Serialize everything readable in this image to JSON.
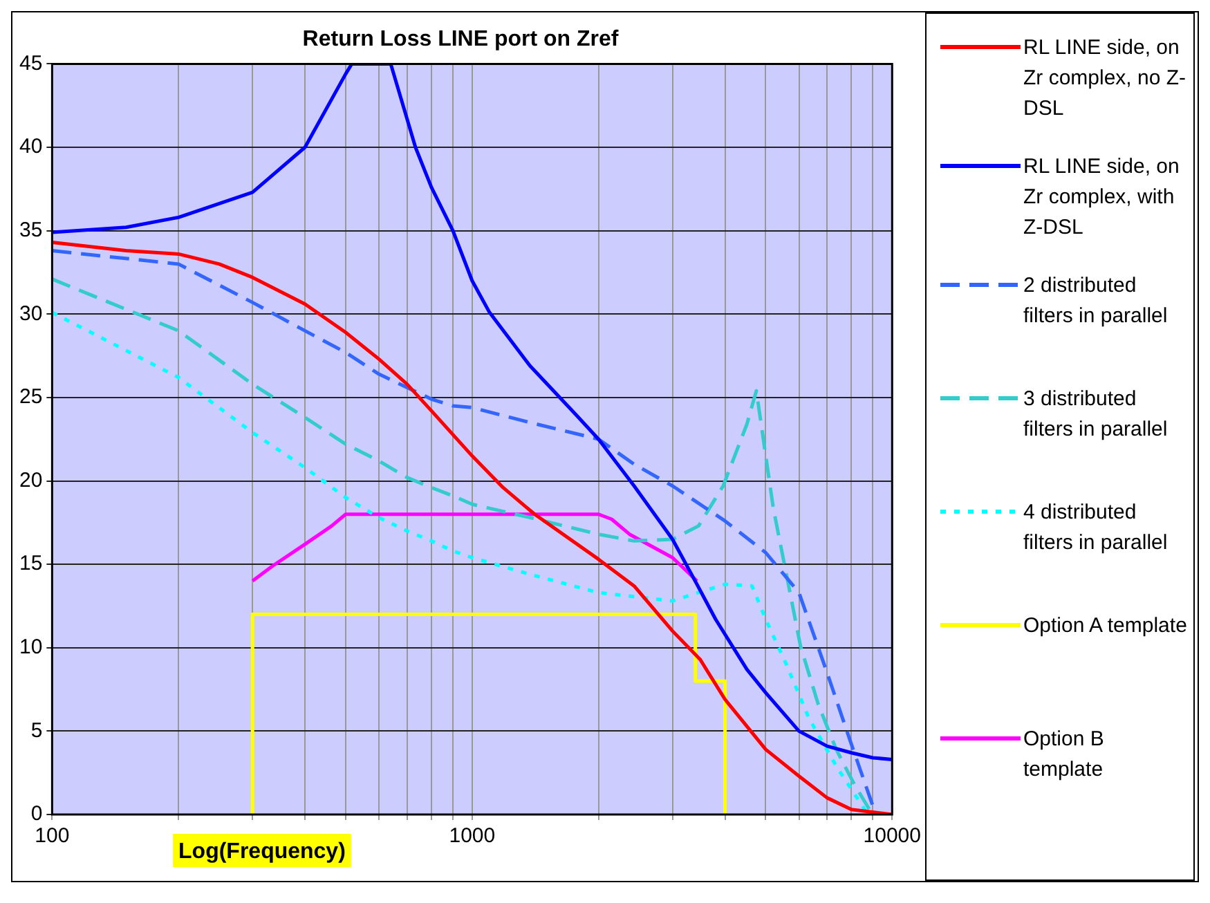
{
  "chart_data": {
    "type": "line",
    "title": "Return Loss LINE port on Zref",
    "xlabel": "Log(Frequency)",
    "log": "x",
    "grid": true,
    "legend": "right",
    "marker": "none",
    "xlim": [
      100,
      10000
    ],
    "ylim": [
      0,
      45
    ],
    "xticks": [
      100,
      {
        "value": 200,
        "label": null
      },
      {
        "value": 300,
        "label": null
      },
      {
        "value": 400,
        "label": null
      },
      {
        "value": 500,
        "label": null
      },
      {
        "value": 600,
        "label": null
      },
      {
        "value": 700,
        "label": null
      },
      {
        "value": 800,
        "label": null
      },
      {
        "value": 900,
        "label": null
      },
      1000,
      {
        "value": 2000,
        "label": null
      },
      {
        "value": 3000,
        "label": null
      },
      {
        "value": 4000,
        "label": null
      },
      {
        "value": 5000,
        "label": null
      },
      {
        "value": 6000,
        "label": null
      },
      {
        "value": 7000,
        "label": null
      },
      {
        "value": 8000,
        "label": null
      },
      {
        "value": 9000,
        "label": null
      },
      10000
    ],
    "yticks": [
      0,
      5,
      10,
      15,
      20,
      25,
      30,
      35,
      40,
      45
    ],
    "series": [
      {
        "name": "RL LINE side, on Zr complex, no Z-DSL",
        "color": "#ff0000",
        "line_style": "solid",
        "x": [
          100,
          150,
          200,
          250,
          300,
          400,
          500,
          600,
          700,
          800,
          1000,
          1185,
          1409,
          2000,
          2430,
          3000,
          3490,
          4000,
          5000,
          6000,
          7000,
          8000,
          10000
        ],
        "values": [
          34.3,
          33.8,
          33.6,
          33.0,
          32.2,
          30.6,
          28.9,
          27.3,
          25.8,
          24.2,
          21.5,
          19.6,
          18.0,
          15.3,
          13.7,
          11.0,
          9.3,
          6.9,
          3.9,
          2.3,
          1.0,
          0.3,
          0
        ]
      },
      {
        "name": "RL LINE side, on Zr complex, with Z-DSL",
        "color": "#0000ff",
        "line_style": "solid",
        "x": [
          100,
          150,
          200,
          300,
          400,
          500,
          517,
          640,
          733,
          800,
          900,
          1000,
          1100,
          1373,
          1762,
          2000,
          2430,
          3000,
          3430,
          3800,
          4510,
          5000,
          6000,
          7000,
          8000,
          9000,
          10000
        ],
        "values": [
          34.9,
          35.2,
          35.8,
          37.3,
          40.0,
          44.4,
          45,
          45,
          40.0,
          37.6,
          35.0,
          32.0,
          30.1,
          26.9,
          24.0,
          22.5,
          19.7,
          16.5,
          13.8,
          11.7,
          8.7,
          7.3,
          5.0,
          4.1,
          3.7,
          3.4,
          3.3
        ]
      },
      {
        "name": "2 distributed filters in parallel",
        "color": "#3366ff",
        "line_style": "dashed",
        "x": [
          100,
          200,
          300,
          400,
          500,
          600,
          700,
          800,
          900,
          1000,
          1373,
          2000,
          2430,
          3000,
          4000,
          5000,
          6000,
          7000,
          8000,
          9000,
          9200
        ],
        "values": [
          33.8,
          33.0,
          30.7,
          29.0,
          27.7,
          26.4,
          25.6,
          24.9,
          24.5,
          24.4,
          23.5,
          22.5,
          21.0,
          19.7,
          17.6,
          15.7,
          13.3,
          8.5,
          4.2,
          0.5,
          0
        ]
      },
      {
        "name": "3 distributed filters in parallel",
        "color": "#33cccc",
        "line_style": "dashed",
        "x": [
          100,
          200,
          300,
          400,
          500,
          600,
          700,
          800,
          900,
          1000,
          1373,
          2000,
          2430,
          3000,
          3460,
          3960,
          4510,
          4750,
          5210,
          5600,
          6050,
          6670,
          7360,
          8130,
          8980
        ],
        "values": [
          32.1,
          29.0,
          25.8,
          23.8,
          22.2,
          21.2,
          20.2,
          19.6,
          19.1,
          18.6,
          17.8,
          16.8,
          16.4,
          16.5,
          17.3,
          19.7,
          23.4,
          25.4,
          18.4,
          14.4,
          10.1,
          6.6,
          3.9,
          1.8,
          0
        ]
      },
      {
        "name": "4 distributed filters in parallel",
        "color": "#00ffff",
        "line_style": "dotted",
        "x": [
          100,
          200,
          300,
          400,
          500,
          600,
          700,
          800,
          900,
          1000,
          1373,
          2000,
          3000,
          3350,
          4000,
          4640,
          5000,
          5600,
          6330,
          7360,
          8760
        ],
        "values": [
          30.1,
          26.2,
          22.9,
          20.8,
          19.0,
          17.8,
          17.0,
          16.4,
          15.8,
          15.4,
          14.4,
          13.3,
          12.8,
          13.2,
          13.8,
          13.7,
          11.7,
          9.0,
          5.8,
          2.9,
          0
        ]
      },
      {
        "name": "Option A template",
        "color": "#ffff00",
        "line_style": "solid",
        "x": [
          300,
          300,
          3400,
          3400,
          4000,
          4000
        ],
        "values": [
          0,
          12,
          12,
          8,
          8,
          0
        ]
      },
      {
        "name": "Option B template",
        "color": "#ff00ff",
        "line_style": "solid",
        "x": [
          300,
          335,
          400,
          463,
          500,
          2000,
          2150,
          2370,
          3000,
          3430
        ],
        "values": [
          14.0,
          14.9,
          16.2,
          17.3,
          18.0,
          18.0,
          17.7,
          16.8,
          15.4,
          14.0
        ]
      }
    ]
  }
}
